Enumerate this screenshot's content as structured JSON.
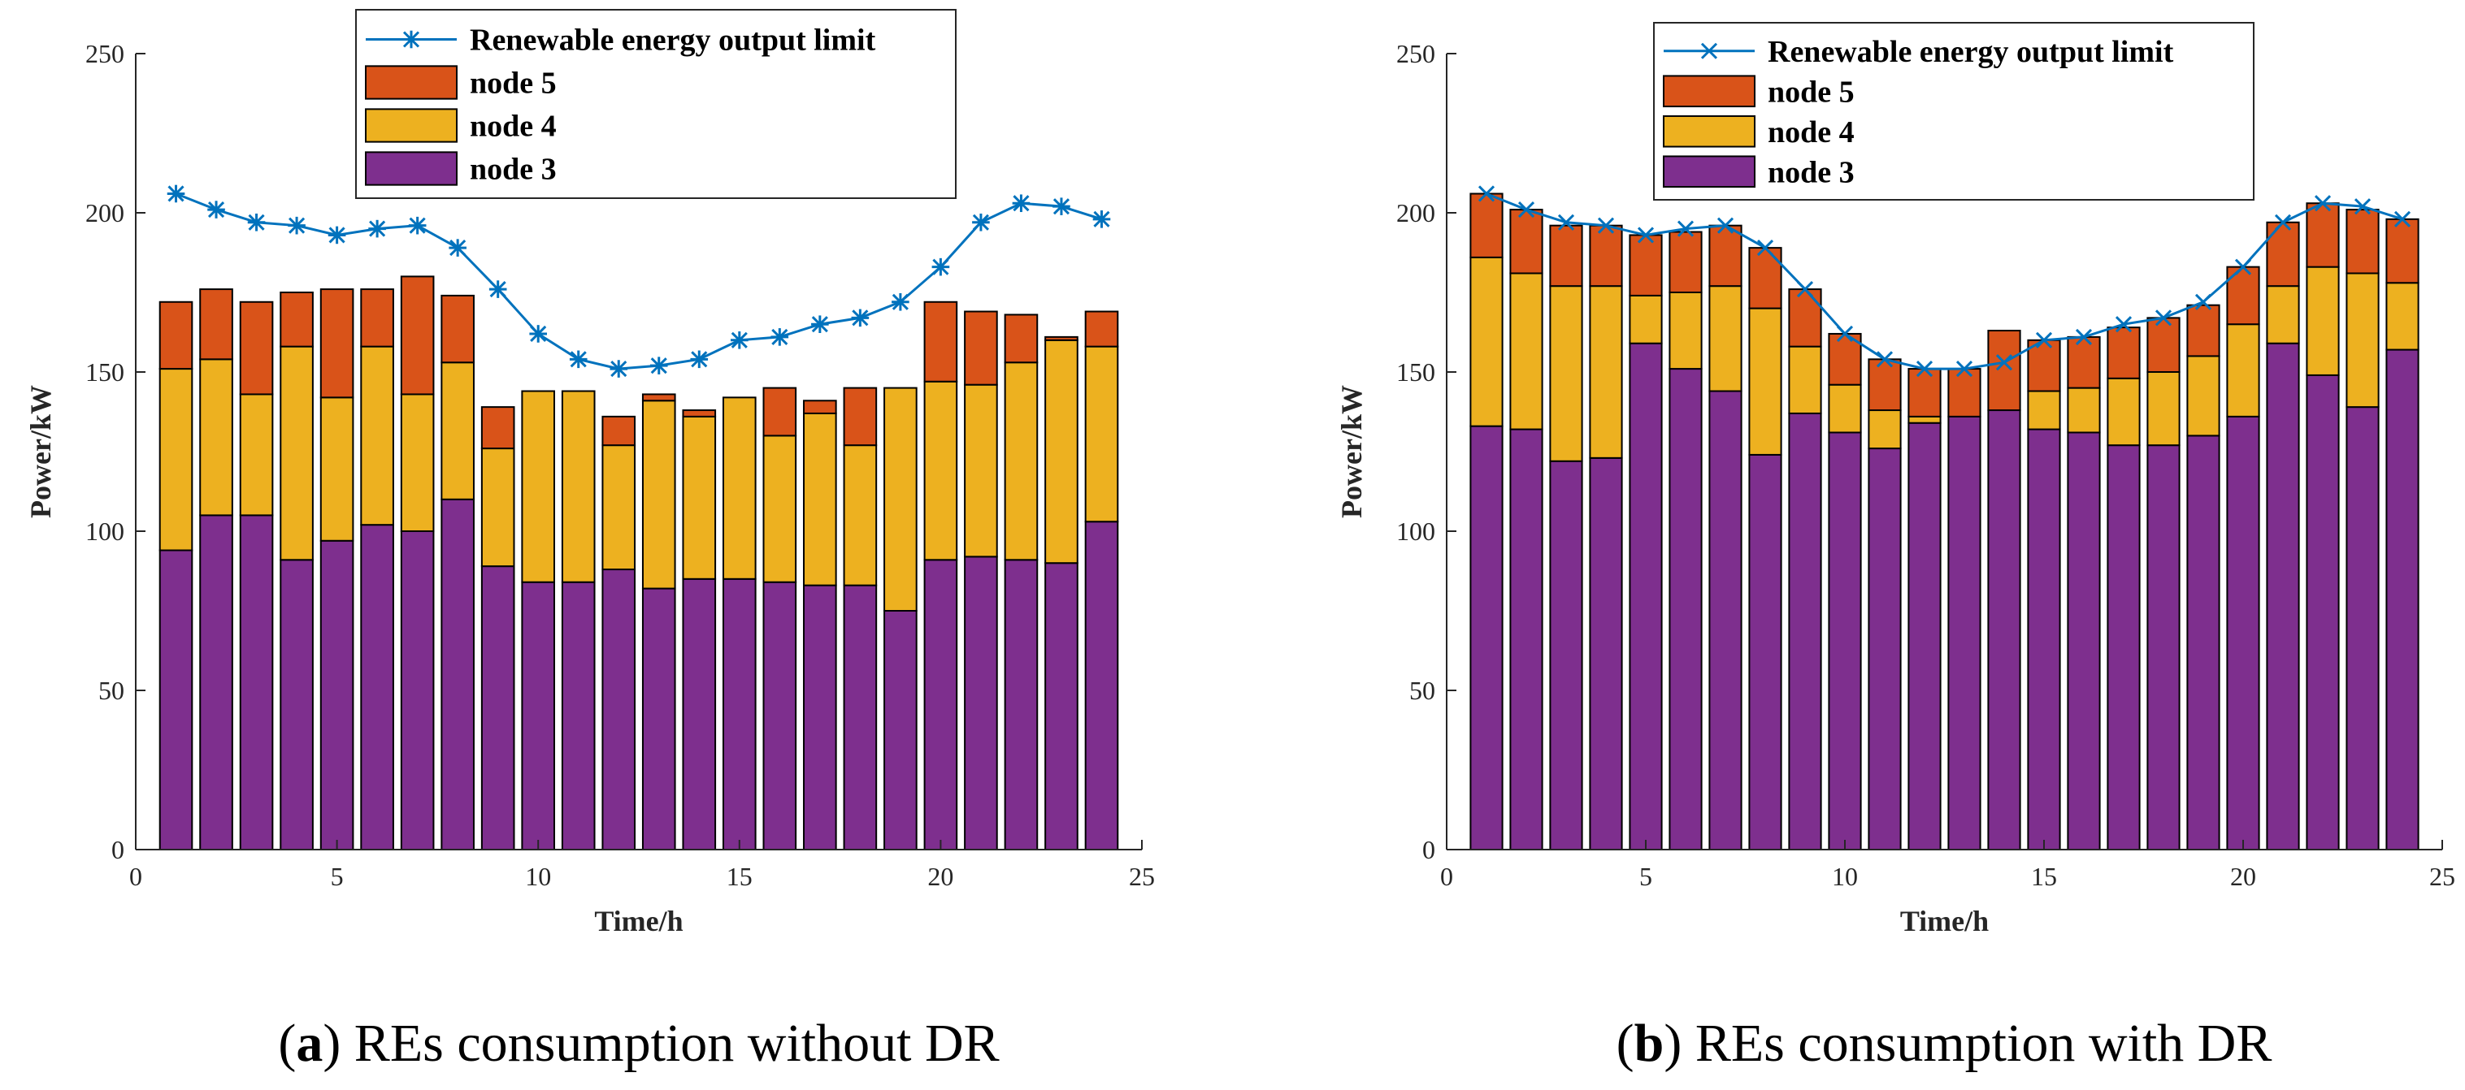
{
  "colors": {
    "node3": "#7E2F8E",
    "node4": "#EDB120",
    "node5": "#D95319",
    "limit": "#0072BD",
    "axis": "#262626"
  },
  "chart_data": [
    {
      "type": "bar",
      "stacked": true,
      "caption_letter": "a",
      "caption_text": ") REs consumption without DR",
      "caption_open": "(",
      "xlabel": "Time/h",
      "ylabel": "Power/kW",
      "xlim": [
        0,
        25
      ],
      "ylim": [
        0,
        250
      ],
      "xticks": [
        "0",
        "5",
        "10",
        "15",
        "20",
        "25"
      ],
      "yticks": [
        "0",
        "50",
        "100",
        "150",
        "200",
        "250"
      ],
      "legend_position": "top-center",
      "legend": [
        "Renewable energy output limit",
        "node 5",
        "node 4",
        "node 3"
      ],
      "line_marker": "*",
      "x": [
        1,
        2,
        3,
        4,
        5,
        6,
        7,
        8,
        9,
        10,
        11,
        12,
        13,
        14,
        15,
        16,
        17,
        18,
        19,
        20,
        21,
        22,
        23,
        24
      ],
      "limit": [
        206,
        201,
        197,
        196,
        193,
        195,
        196,
        189,
        176,
        162,
        154,
        151,
        152,
        154,
        160,
        161,
        165,
        167,
        172,
        183,
        197,
        203,
        202,
        198
      ],
      "series": [
        {
          "name": "node 3",
          "values": [
            94,
            105,
            105,
            91,
            97,
            102,
            100,
            110,
            89,
            84,
            84,
            88,
            82,
            85,
            85,
            84,
            83,
            83,
            75,
            91,
            92,
            91,
            90,
            103
          ]
        },
        {
          "name": "node 4",
          "values": [
            57,
            49,
            38,
            67,
            45,
            56,
            43,
            43,
            37,
            60,
            60,
            39,
            59,
            51,
            57,
            46,
            54,
            44,
            70,
            56,
            54,
            62,
            70,
            55
          ]
        },
        {
          "name": "node 5",
          "values": [
            21,
            22,
            29,
            17,
            34,
            18,
            37,
            21,
            13,
            0,
            0,
            9,
            2,
            2,
            0,
            15,
            4,
            18,
            0,
            25,
            23,
            15,
            1,
            11
          ]
        }
      ]
    },
    {
      "type": "bar",
      "stacked": true,
      "caption_letter": "b",
      "caption_text": ") REs consumption with DR",
      "caption_open": "(",
      "xlabel": "Time/h",
      "ylabel": "Power/kW",
      "xlim": [
        0,
        25
      ],
      "ylim": [
        0,
        250
      ],
      "xticks": [
        "0",
        "5",
        "10",
        "15",
        "20",
        "25"
      ],
      "yticks": [
        "0",
        "50",
        "100",
        "150",
        "200",
        "250"
      ],
      "legend_position": "top-center",
      "legend": [
        "Renewable energy output limit",
        "node 5",
        "node 4",
        "node 3"
      ],
      "line_marker": "x",
      "x": [
        1,
        2,
        3,
        4,
        5,
        6,
        7,
        8,
        9,
        10,
        11,
        12,
        13,
        14,
        15,
        16,
        17,
        18,
        19,
        20,
        21,
        22,
        23,
        24
      ],
      "limit": [
        206,
        201,
        197,
        196,
        193,
        195,
        196,
        189,
        176,
        162,
        154,
        151,
        151,
        153,
        160,
        161,
        165,
        167,
        172,
        183,
        197,
        203,
        202,
        198
      ],
      "series": [
        {
          "name": "node 3",
          "values": [
            133,
            132,
            122,
            123,
            159,
            151,
            144,
            124,
            137,
            131,
            126,
            134,
            136,
            138,
            132,
            131,
            127,
            127,
            130,
            136,
            159,
            149,
            139,
            157
          ]
        },
        {
          "name": "node 4",
          "values": [
            53,
            49,
            55,
            54,
            15,
            24,
            33,
            46,
            21,
            15,
            12,
            2,
            0,
            0,
            12,
            14,
            21,
            23,
            25,
            29,
            18,
            34,
            42,
            21
          ]
        },
        {
          "name": "node 5",
          "values": [
            20,
            20,
            19,
            19,
            19,
            19,
            19,
            19,
            18,
            16,
            16,
            15,
            15,
            25,
            16,
            16,
            16,
            17,
            16,
            18,
            20,
            20,
            20,
            20
          ]
        }
      ]
    }
  ]
}
